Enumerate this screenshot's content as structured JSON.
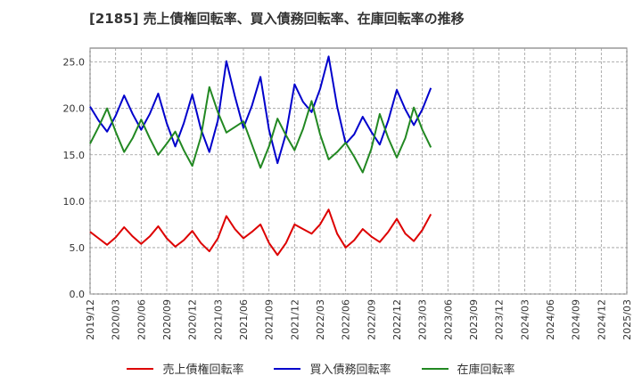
{
  "chart_data": {
    "type": "line",
    "title": "[2185]  売上債権回転率、買入債務回転率、在庫回転率の推移",
    "ylim": [
      0,
      26.5
    ],
    "yticks": [
      "0.0",
      "5.0",
      "10.0",
      "15.0",
      "20.0",
      "25.0"
    ],
    "ytick_values": [
      0,
      5,
      10,
      15,
      20,
      25
    ],
    "xticks": [
      "2019/12",
      "2020/03",
      "2020/06",
      "2020/09",
      "2020/12",
      "2021/03",
      "2021/06",
      "2021/09",
      "2021/12",
      "2022/03",
      "2022/06",
      "2022/09",
      "2022/12",
      "2023/03",
      "2023/06",
      "2023/09",
      "2023/12",
      "2024/03",
      "2024/06",
      "2024/09",
      "2024/12",
      "2025/03"
    ],
    "grid": true,
    "legend_position": "bottom",
    "series": [
      {
        "name": "売上債権回転率",
        "color": "#dd0000",
        "values": [
          6.7,
          6.0,
          5.3,
          6.1,
          7.2,
          6.2,
          5.4,
          6.2,
          7.3,
          6.0,
          5.1,
          5.8,
          6.8,
          5.5,
          4.6,
          6.0,
          8.4,
          7.0,
          6.0,
          6.7,
          7.5,
          5.5,
          4.2,
          5.5,
          7.5,
          7.0,
          6.5,
          7.5,
          9.1,
          6.5,
          5.0,
          5.8,
          7.0,
          6.2,
          5.6,
          6.7,
          8.1,
          6.5,
          5.7,
          6.9,
          8.6
        ]
      },
      {
        "name": "買入債務回転率",
        "color": "#0000cc",
        "values": [
          20.2,
          18.7,
          17.5,
          19.2,
          21.4,
          19.4,
          17.7,
          19.4,
          21.6,
          18.4,
          15.9,
          18.4,
          21.5,
          17.8,
          15.3,
          18.7,
          25.1,
          21.3,
          17.9,
          20.3,
          23.4,
          17.7,
          14.1,
          17.3,
          22.6,
          20.7,
          19.6,
          22.1,
          25.6,
          20.2,
          16.2,
          17.2,
          19.1,
          17.5,
          16.1,
          18.7,
          22.0,
          19.9,
          18.2,
          19.9,
          22.2
        ]
      },
      {
        "name": "在庫回転率",
        "color": "#228822",
        "values": [
          16.2,
          18.0,
          20.0,
          17.5,
          15.3,
          16.8,
          18.8,
          16.8,
          15.0,
          16.2,
          17.5,
          15.5,
          13.8,
          16.9,
          22.3,
          19.6,
          17.4,
          18.0,
          18.6,
          16.1,
          13.6,
          15.9,
          18.9,
          17.1,
          15.5,
          17.8,
          20.8,
          17.2,
          14.5,
          15.3,
          16.3,
          14.8,
          13.1,
          15.6,
          19.4,
          16.8,
          14.7,
          16.8,
          20.1,
          17.7,
          15.8
        ]
      }
    ]
  }
}
